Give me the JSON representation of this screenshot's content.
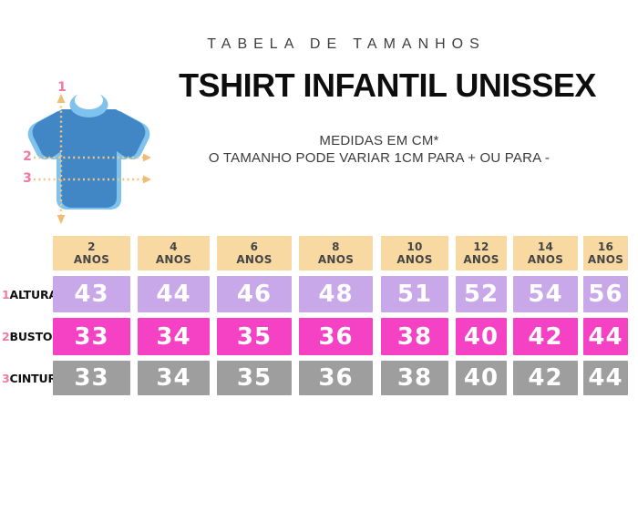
{
  "header": {
    "kicker": "TABELA DE TAMANHOS",
    "title": "TSHIRT INFANTIL UNISSEX",
    "note_units": "MEDIDAS EM CM*",
    "note_tolerance": "O TAMANHO PODE VARIAR 1CM PARA + OU PARA -"
  },
  "illustration": {
    "description": "blue kids t-shirt with dotted measurement guide lines",
    "markers": [
      {
        "id": "1",
        "measures": "ALTURA"
      },
      {
        "id": "2",
        "measures": "BUSTO"
      },
      {
        "id": "3",
        "measures": "CINTURA"
      }
    ]
  },
  "chart_data": {
    "type": "table",
    "title": "TSHIRT INFANTIL UNISSEX",
    "units": "cm",
    "header_bg": "#F8D9A2",
    "columns": [
      {
        "age": "2",
        "suffix": "ANOS"
      },
      {
        "age": "4",
        "suffix": "ANOS"
      },
      {
        "age": "6",
        "suffix": "ANOS"
      },
      {
        "age": "8",
        "suffix": "ANOS"
      },
      {
        "age": "10",
        "suffix": "ANOS"
      },
      {
        "age": "12",
        "suffix": "ANOS"
      },
      {
        "age": "14",
        "suffix": "ANOS"
      },
      {
        "age": "16",
        "suffix": "ANOS"
      }
    ],
    "rows": [
      {
        "marker": "1",
        "label": "ALTURA",
        "color": "#C8A8E8",
        "values": [
          "43",
          "44",
          "46",
          "48",
          "51",
          "52",
          "54",
          "56"
        ]
      },
      {
        "marker": "2",
        "label": "BUSTO",
        "color": "#F542C5",
        "values": [
          "33",
          "34",
          "35",
          "36",
          "38",
          "40",
          "42",
          "44"
        ]
      },
      {
        "marker": "3",
        "label": "CINTURA",
        "color": "#9E9E9E",
        "values": [
          "33",
          "34",
          "35",
          "36",
          "38",
          "40",
          "42",
          "44"
        ]
      }
    ]
  },
  "colors": {
    "shirt_main": "#4187C6",
    "shirt_light": "#7EC2ED",
    "guide_line": "#F3C67F",
    "marker_pink": "#F2799F"
  }
}
